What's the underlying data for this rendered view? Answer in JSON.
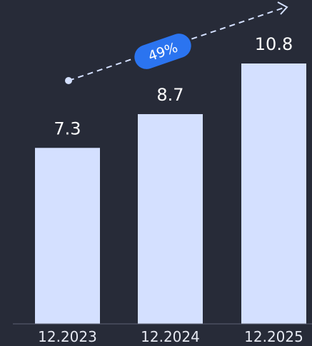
{
  "chart_data": {
    "type": "bar",
    "categories": [
      "12.2023",
      "12.2024",
      "12.2025"
    ],
    "values": [
      7.3,
      8.7,
      10.8
    ],
    "value_labels": [
      "7.3",
      "8.7",
      "10.8"
    ],
    "title": "",
    "xlabel": "",
    "ylabel": "",
    "ylim": [
      0,
      10.8
    ],
    "grid": false,
    "legend": "none",
    "growth_annotation": "49%"
  },
  "colors": {
    "background": "#272b38",
    "bar": "#d4e0ff",
    "badge": "#2b74f0",
    "arrow": "#d4e0ff",
    "text": "#ffffff",
    "axis_line": "#5c6173"
  }
}
